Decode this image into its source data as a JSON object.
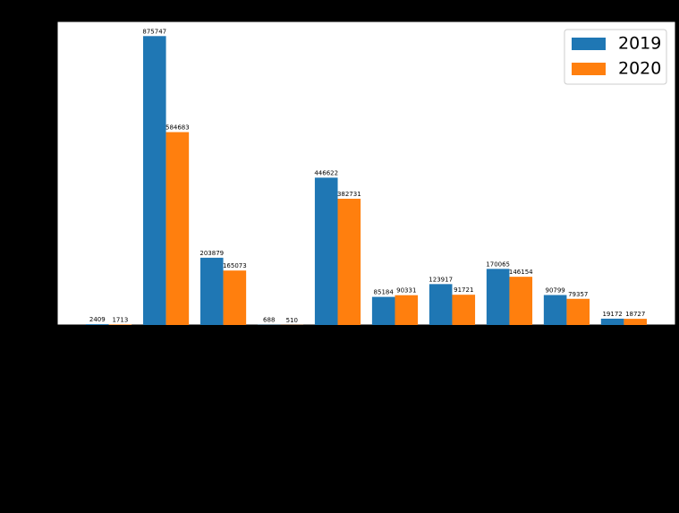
{
  "chart_data": {
    "type": "bar",
    "categories": [
      null,
      null,
      null,
      null,
      null,
      null,
      null,
      null,
      null,
      null
    ],
    "series": [
      {
        "name": "2019",
        "color": "#1f77b4",
        "values": [
          2409,
          875747,
          203879,
          688,
          446622,
          85184,
          123917,
          170065,
          90799,
          19172
        ]
      },
      {
        "name": "2020",
        "color": "#ff7f0e",
        "values": [
          1713,
          584683,
          165073,
          510,
          382731,
          90331,
          91721,
          146154,
          79357,
          18727
        ]
      }
    ],
    "ylim": [
      0,
      920000
    ],
    "legend": "upper right"
  }
}
